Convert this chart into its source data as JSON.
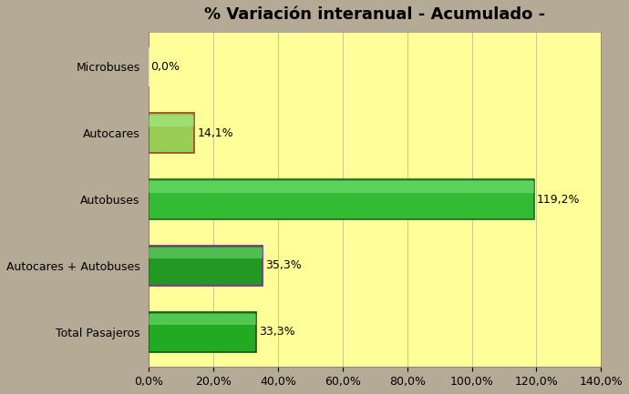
{
  "title": "% Variación interanual - Acumulado -",
  "categories": [
    "Total Pasajeros",
    "Autocares + Autobuses",
    "Autobuses",
    "Autocares",
    "Microbuses"
  ],
  "values": [
    33.3,
    35.3,
    119.2,
    14.1,
    0.0
  ],
  "labels": [
    "33,3%",
    "35,3%",
    "119,2%",
    "14,1%",
    "0,0%"
  ],
  "bar_face_colors": [
    "#22aa22",
    "#229922",
    "#33bb33",
    "#99cc55",
    "#ffff99"
  ],
  "bar_edge_colors": [
    "#115511",
    "#882299",
    "#226622",
    "#994422",
    "#ffff99"
  ],
  "background_color": "#b5aa96",
  "plot_bg_color": "#ffff99",
  "xlim": [
    0,
    140
  ],
  "xticks": [
    0,
    20,
    40,
    60,
    80,
    100,
    120,
    140
  ],
  "xtick_labels": [
    "0,0%",
    "20,0%",
    "40,0%",
    "60,0%",
    "80,0%",
    "100,0%",
    "120,0%",
    "140,0%"
  ],
  "title_fontsize": 13,
  "label_fontsize": 9,
  "tick_fontsize": 9,
  "grid_color": "#cccc88",
  "bar_height": 0.6
}
